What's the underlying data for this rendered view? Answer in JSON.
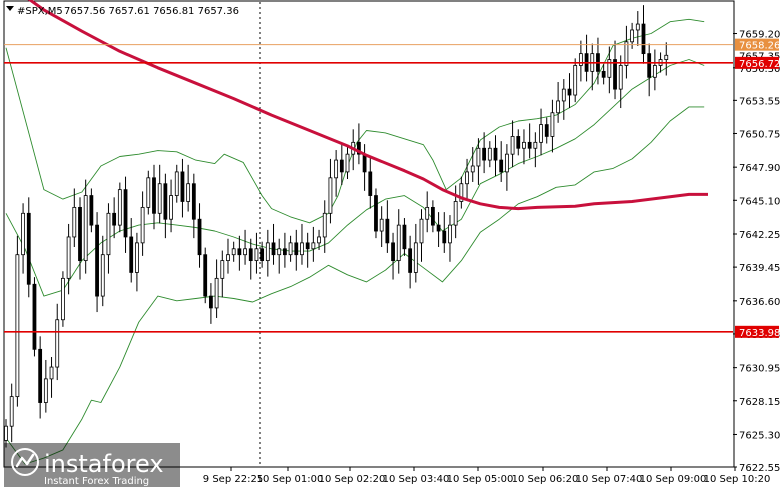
{
  "header": {
    "symbol": "#SPX,M5",
    "ohlc": "7657.56 7657.61 7656.81 7657.36"
  },
  "watermark": {
    "brand": "instaforex",
    "tagline": "Instant Forex Trading"
  },
  "colors": {
    "candle": "#000000",
    "bollinger": "#2e8b2e",
    "moving_average": "#c8103c",
    "level_line": "#e00000",
    "ask_line": "#e8a060",
    "tag_red": "#e00000",
    "tag_orange": "#e89040"
  },
  "chart_data": {
    "type": "candlestick",
    "instrument": "#SPX",
    "timeframe": "M5",
    "ylim": [
      7622.55,
      7661.95
    ],
    "y_ticks": [
      "7659.20",
      "7656.30",
      "7653.55",
      "7650.75",
      "7647.90",
      "7645.10",
      "7642.25",
      "7639.45",
      "7636.60",
      "7633.80",
      "7630.95",
      "7628.15",
      "7625.30",
      "7622.55"
    ],
    "x_ticks": [
      "9 Sep 22:25",
      "10 Sep 01:00",
      "10 Sep 02:20",
      "10 Sep 03:40",
      "10 Sep 05:00",
      "10 Sep 06:20",
      "10 Sep 07:40",
      "10 Sep 09:00",
      "10 Sep 10:20"
    ],
    "levels": [
      {
        "price": 7656.72,
        "label": "7656.72",
        "color": "red"
      },
      {
        "price": 7633.98,
        "label": "7633.98",
        "color": "red"
      },
      {
        "price": 7658.26,
        "label": "7658.26",
        "color": "orange"
      }
    ],
    "price_tag_partial": "7657.35",
    "ma_series": [
      [
        0,
        7663.5
      ],
      [
        20,
        7661.2
      ],
      [
        40,
        7659.4
      ],
      [
        60,
        7657.7
      ],
      [
        80,
        7656.3
      ],
      [
        100,
        7655.0
      ],
      [
        120,
        7653.7
      ],
      [
        140,
        7652.3
      ],
      [
        160,
        7651.0
      ],
      [
        180,
        7649.7
      ],
      [
        190,
        7648.9
      ],
      [
        210,
        7647.6
      ],
      [
        220,
        7646.9
      ],
      [
        230,
        7646.0
      ],
      [
        240,
        7645.3
      ],
      [
        250,
        7644.8
      ],
      [
        260,
        7644.5
      ],
      [
        270,
        7644.4
      ],
      [
        280,
        7644.5
      ],
      [
        300,
        7644.6
      ],
      [
        310,
        7644.8
      ],
      [
        330,
        7645.0
      ],
      [
        350,
        7645.4
      ],
      [
        360,
        7645.6
      ],
      [
        370,
        7645.6
      ]
    ],
    "bb_upper": [
      [
        0,
        7658.0
      ],
      [
        10,
        7652.0
      ],
      [
        20,
        7646.0
      ],
      [
        30,
        7645.2
      ],
      [
        40,
        7645.8
      ],
      [
        50,
        7648.0
      ],
      [
        60,
        7648.8
      ],
      [
        70,
        7649.0
      ],
      [
        80,
        7649.3
      ],
      [
        90,
        7649.2
      ],
      [
        100,
        7648.5
      ],
      [
        110,
        7648.2
      ],
      [
        115,
        7649.0
      ],
      [
        125,
        7648.3
      ],
      [
        135,
        7645.5
      ],
      [
        140,
        7644.4
      ],
      [
        150,
        7643.7
      ],
      [
        160,
        7643.2
      ],
      [
        170,
        7644.0
      ],
      [
        175,
        7645.5
      ],
      [
        180,
        7648.0
      ],
      [
        185,
        7650.0
      ],
      [
        190,
        7651.0
      ],
      [
        200,
        7650.8
      ],
      [
        210,
        7650.3
      ],
      [
        220,
        7649.8
      ],
      [
        225,
        7648.5
      ],
      [
        232,
        7646.0
      ],
      [
        240,
        7647.0
      ],
      [
        250,
        7650.2
      ],
      [
        260,
        7651.3
      ],
      [
        270,
        7651.8
      ],
      [
        280,
        7652.0
      ],
      [
        290,
        7652.3
      ],
      [
        300,
        7653.2
      ],
      [
        310,
        7655.0
      ],
      [
        320,
        7658.2
      ],
      [
        330,
        7658.8
      ],
      [
        340,
        7659.2
      ],
      [
        350,
        7660.2
      ],
      [
        360,
        7660.4
      ],
      [
        368,
        7660.2
      ]
    ],
    "bb_lower": [
      [
        0,
        7625.0
      ],
      [
        10,
        7622.8
      ],
      [
        20,
        7623.3
      ],
      [
        30,
        7624.0
      ],
      [
        40,
        7626.6
      ],
      [
        45,
        7628.2
      ],
      [
        50,
        7628.0
      ],
      [
        60,
        7631.0
      ],
      [
        70,
        7634.8
      ],
      [
        80,
        7637.0
      ],
      [
        90,
        7636.6
      ],
      [
        100,
        7636.8
      ],
      [
        110,
        7637.0
      ],
      [
        120,
        7636.8
      ],
      [
        130,
        7636.5
      ],
      [
        140,
        7637.2
      ],
      [
        150,
        7637.8
      ],
      [
        160,
        7638.6
      ],
      [
        170,
        7639.6
      ],
      [
        180,
        7638.8
      ],
      [
        190,
        7638.2
      ],
      [
        200,
        7639.2
      ],
      [
        210,
        7640.6
      ],
      [
        220,
        7639.4
      ],
      [
        230,
        7638.2
      ],
      [
        240,
        7640.0
      ],
      [
        250,
        7642.4
      ],
      [
        260,
        7643.5
      ],
      [
        270,
        7644.8
      ],
      [
        280,
        7645.4
      ],
      [
        290,
        7646.2
      ],
      [
        300,
        7646.4
      ],
      [
        310,
        7647.5
      ],
      [
        320,
        7647.8
      ],
      [
        330,
        7648.6
      ],
      [
        340,
        7650.0
      ],
      [
        350,
        7651.8
      ],
      [
        360,
        7653.0
      ],
      [
        368,
        7653.0
      ]
    ],
    "bb_middle": [
      [
        0,
        7644.0
      ],
      [
        10,
        7641.0
      ],
      [
        20,
        7637.0
      ],
      [
        30,
        7637.5
      ],
      [
        40,
        7640.0
      ],
      [
        50,
        7641.5
      ],
      [
        60,
        7642.5
      ],
      [
        70,
        7643.0
      ],
      [
        80,
        7643.2
      ],
      [
        90,
        7643.0
      ],
      [
        100,
        7642.8
      ],
      [
        110,
        7642.5
      ],
      [
        120,
        7642.0
      ],
      [
        130,
        7641.4
      ],
      [
        140,
        7641.0
      ],
      [
        150,
        7640.8
      ],
      [
        160,
        7640.8
      ],
      [
        170,
        7641.5
      ],
      [
        180,
        7643.0
      ],
      [
        190,
        7644.3
      ],
      [
        200,
        7645.2
      ],
      [
        210,
        7645.5
      ],
      [
        220,
        7644.5
      ],
      [
        230,
        7642.5
      ],
      [
        240,
        7643.5
      ],
      [
        250,
        7646.5
      ],
      [
        260,
        7647.3
      ],
      [
        270,
        7648.2
      ],
      [
        280,
        7648.8
      ],
      [
        290,
        7649.5
      ],
      [
        300,
        7650.3
      ],
      [
        310,
        7651.5
      ],
      [
        320,
        7653.0
      ],
      [
        330,
        7654.5
      ],
      [
        340,
        7655.5
      ],
      [
        350,
        7656.5
      ],
      [
        360,
        7657.0
      ],
      [
        368,
        7656.5
      ]
    ],
    "candles": [
      {
        "t": 0,
        "c": 7626.0
      },
      {
        "t": 3,
        "c": 7628.5
      },
      {
        "t": 6,
        "c": 7640.5
      },
      {
        "t": 9,
        "c": 7644.0
      },
      {
        "t": 12,
        "c": 7638.0
      },
      {
        "t": 15,
        "c": 7632.5
      },
      {
        "t": 18,
        "c": 7628.0
      },
      {
        "t": 21,
        "c": 7630.0
      },
      {
        "t": 24,
        "c": 7631.0
      },
      {
        "t": 27,
        "c": 7635.0
      },
      {
        "t": 30,
        "c": 7638.5
      },
      {
        "t": 33,
        "c": 7642.0
      },
      {
        "t": 36,
        "c": 7644.5
      },
      {
        "t": 39,
        "c": 7640.0
      },
      {
        "t": 42,
        "c": 7645.5
      },
      {
        "t": 45,
        "c": 7643.0
      },
      {
        "t": 48,
        "c": 7637.0
      },
      {
        "t": 51,
        "c": 7640.5
      },
      {
        "t": 54,
        "c": 7644.0
      },
      {
        "t": 57,
        "c": 7643.0
      },
      {
        "t": 60,
        "c": 7646.0
      },
      {
        "t": 63,
        "c": 7642.0
      },
      {
        "t": 66,
        "c": 7639.0
      },
      {
        "t": 69,
        "c": 7641.5
      },
      {
        "t": 72,
        "c": 7644.5
      },
      {
        "t": 75,
        "c": 7647.0
      },
      {
        "t": 78,
        "c": 7644.0
      },
      {
        "t": 81,
        "c": 7646.5
      },
      {
        "t": 84,
        "c": 7643.5
      },
      {
        "t": 87,
        "c": 7645.5
      },
      {
        "t": 90,
        "c": 7647.5
      },
      {
        "t": 93,
        "c": 7645.0
      },
      {
        "t": 96,
        "c": 7646.5
      },
      {
        "t": 99,
        "c": 7643.5
      },
      {
        "t": 102,
        "c": 7640.5
      },
      {
        "t": 105,
        "c": 7637.0
      },
      {
        "t": 108,
        "c": 7636.0
      },
      {
        "t": 111,
        "c": 7638.5
      },
      {
        "t": 114,
        "c": 7640.0
      },
      {
        "t": 117,
        "c": 7640.5
      },
      {
        "t": 120,
        "c": 7641.0
      },
      {
        "t": 123,
        "c": 7640.5
      },
      {
        "t": 126,
        "c": 7641.0
      },
      {
        "t": 129,
        "c": 7640.0
      },
      {
        "t": 132,
        "c": 7641.0
      },
      {
        "t": 135,
        "c": 7640.0
      },
      {
        "t": 138,
        "c": 7641.5
      },
      {
        "t": 141,
        "c": 7640.5
      },
      {
        "t": 144,
        "c": 7641.0
      },
      {
        "t": 147,
        "c": 7640.5
      },
      {
        "t": 150,
        "c": 7641.5
      },
      {
        "t": 153,
        "c": 7640.5
      },
      {
        "t": 156,
        "c": 7641.5
      },
      {
        "t": 159,
        "c": 7641.0
      },
      {
        "t": 162,
        "c": 7641.5
      },
      {
        "t": 165,
        "c": 7642.0
      },
      {
        "t": 168,
        "c": 7644.0
      },
      {
        "t": 171,
        "c": 7647.0
      },
      {
        "t": 174,
        "c": 7648.5
      },
      {
        "t": 177,
        "c": 7647.5
      },
      {
        "t": 180,
        "c": 7649.0
      },
      {
        "t": 183,
        "c": 7650.0
      },
      {
        "t": 186,
        "c": 7649.0
      },
      {
        "t": 189,
        "c": 7647.5
      },
      {
        "t": 192,
        "c": 7645.5
      },
      {
        "t": 195,
        "c": 7642.5
      },
      {
        "t": 198,
        "c": 7643.5
      },
      {
        "t": 201,
        "c": 7641.5
      },
      {
        "t": 204,
        "c": 7640.0
      },
      {
        "t": 207,
        "c": 7643.0
      },
      {
        "t": 210,
        "c": 7641.0
      },
      {
        "t": 213,
        "c": 7639.0
      },
      {
        "t": 216,
        "c": 7641.5
      },
      {
        "t": 219,
        "c": 7643.5
      },
      {
        "t": 222,
        "c": 7644.5
      },
      {
        "t": 225,
        "c": 7643.0
      },
      {
        "t": 228,
        "c": 7642.5
      },
      {
        "t": 231,
        "c": 7641.5
      },
      {
        "t": 234,
        "c": 7643.0
      },
      {
        "t": 237,
        "c": 7645.0
      },
      {
        "t": 240,
        "c": 7646.5
      },
      {
        "t": 243,
        "c": 7647.5
      },
      {
        "t": 246,
        "c": 7648.0
      },
      {
        "t": 249,
        "c": 7649.5
      },
      {
        "t": 252,
        "c": 7648.5
      },
      {
        "t": 255,
        "c": 7649.5
      },
      {
        "t": 258,
        "c": 7648.5
      },
      {
        "t": 261,
        "c": 7647.5
      },
      {
        "t": 264,
        "c": 7649.0
      },
      {
        "t": 267,
        "c": 7650.5
      },
      {
        "t": 270,
        "c": 7649.5
      },
      {
        "t": 273,
        "c": 7650.0
      },
      {
        "t": 276,
        "c": 7649.5
      },
      {
        "t": 279,
        "c": 7650.0
      },
      {
        "t": 282,
        "c": 7651.5
      },
      {
        "t": 285,
        "c": 7650.5
      },
      {
        "t": 288,
        "c": 7652.5
      },
      {
        "t": 291,
        "c": 7653.5
      },
      {
        "t": 294,
        "c": 7654.5
      },
      {
        "t": 297,
        "c": 7654.0
      },
      {
        "t": 300,
        "c": 7656.5
      },
      {
        "t": 303,
        "c": 7657.5
      },
      {
        "t": 306,
        "c": 7656.0
      },
      {
        "t": 309,
        "c": 7657.5
      },
      {
        "t": 312,
        "c": 7656.0
      },
      {
        "t": 315,
        "c": 7655.5
      },
      {
        "t": 318,
        "c": 7657.0
      },
      {
        "t": 321,
        "c": 7654.5
      },
      {
        "t": 324,
        "c": 7656.5
      },
      {
        "t": 327,
        "c": 7658.5
      },
      {
        "t": 330,
        "c": 7659.5
      },
      {
        "t": 333,
        "c": 7660.0
      },
      {
        "t": 336,
        "c": 7657.5
      },
      {
        "t": 339,
        "c": 7655.5
      },
      {
        "t": 342,
        "c": 7656.5
      },
      {
        "t": 345,
        "c": 7657.0
      },
      {
        "t": 348,
        "c": 7657.36
      }
    ]
  }
}
